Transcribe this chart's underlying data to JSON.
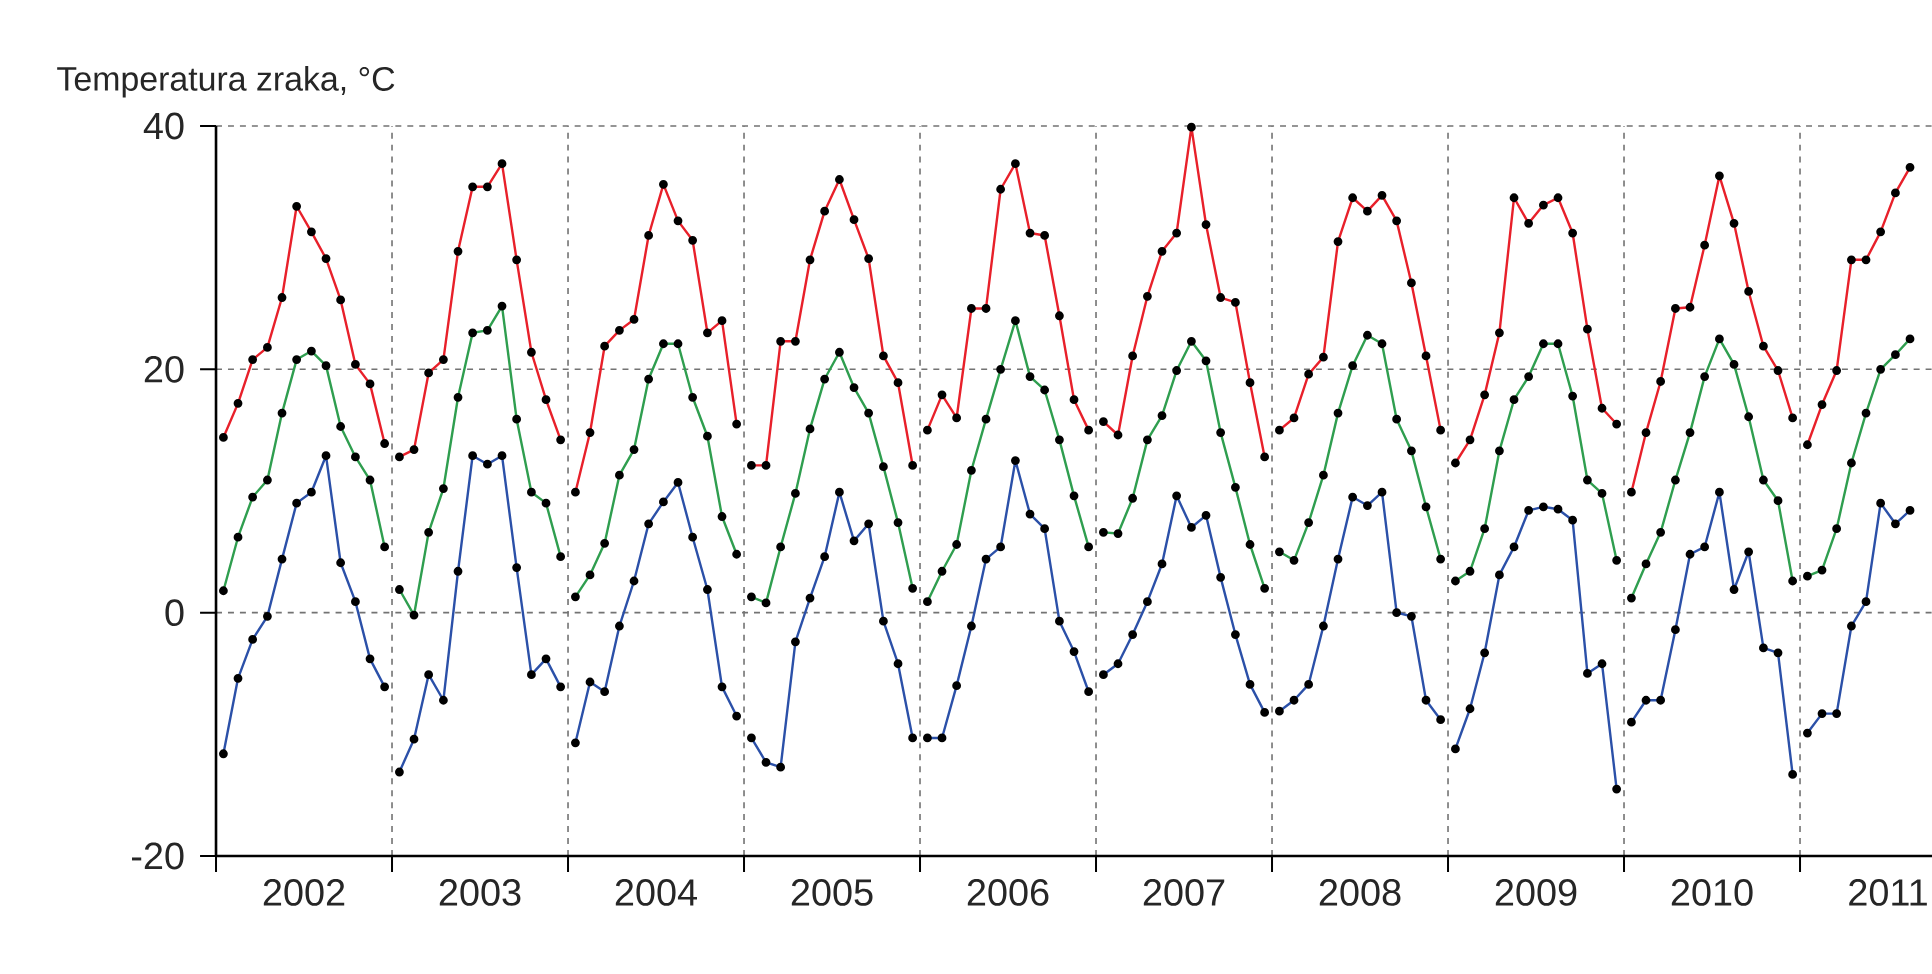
{
  "chart_data": {
    "type": "line",
    "ylabel": "Temperatura zraka, °C",
    "x": [
      2002.042,
      2002.125,
      2002.208,
      2002.292,
      2002.375,
      2002.458,
      2002.542,
      2002.625,
      2002.708,
      2002.792,
      2002.875,
      2002.958,
      2003,
      2003.042,
      2003.125,
      2003.208,
      2003.292,
      2003.375,
      2003.458,
      2003.542,
      2003.625,
      2003.708,
      2003.792,
      2003.875,
      2003.958,
      2004,
      2004.042,
      2004.125,
      2004.208,
      2004.292,
      2004.375,
      2004.458,
      2004.542,
      2004.625,
      2004.708,
      2004.792,
      2004.875,
      2004.958,
      2005,
      2005.042,
      2005.125,
      2005.208,
      2005.292,
      2005.375,
      2005.458,
      2005.542,
      2005.625,
      2005.708,
      2005.792,
      2005.875,
      2005.958,
      2006,
      2006.042,
      2006.125,
      2006.208,
      2006.292,
      2006.375,
      2006.458,
      2006.542,
      2006.625,
      2006.708,
      2006.792,
      2006.875,
      2006.958,
      2007,
      2007.042,
      2007.125,
      2007.208,
      2007.292,
      2007.375,
      2007.458,
      2007.542,
      2007.625,
      2007.708,
      2007.792,
      2007.875,
      2007.958,
      2008,
      2008.042,
      2008.125,
      2008.208,
      2008.292,
      2008.375,
      2008.458,
      2008.542,
      2008.625,
      2008.708,
      2008.792,
      2008.875,
      2008.958,
      2009,
      2009.042,
      2009.125,
      2009.208,
      2009.292,
      2009.375,
      2009.458,
      2009.542,
      2009.625,
      2009.708,
      2009.792,
      2009.875,
      2009.958,
      2010,
      2010.042,
      2010.125,
      2010.208,
      2010.292,
      2010.375,
      2010.458,
      2010.542,
      2010.625,
      2010.708,
      2010.792,
      2010.875,
      2010.958,
      2011,
      2011.042,
      2011.125,
      2011.208,
      2011.292,
      2011.375,
      2011.458,
      2011.542,
      2011.625
    ],
    "series": [
      {
        "color": "#e8202a",
        "values": [
          14.4,
          17.2,
          20.8,
          21.8,
          25.9,
          33.4,
          31.3,
          29.1,
          25.7,
          20.4,
          18.8,
          13.9,
          null,
          12.8,
          13.4,
          19.7,
          20.8,
          29.7,
          35.0,
          35.0,
          36.9,
          29.0,
          21.4,
          17.5,
          14.2,
          null,
          9.9,
          14.8,
          21.9,
          23.2,
          24.1,
          31.0,
          35.2,
          32.2,
          30.6,
          23.0,
          24.0,
          15.5,
          null,
          12.1,
          12.1,
          22.3,
          22.3,
          29.0,
          33.0,
          35.6,
          32.3,
          29.1,
          21.1,
          18.9,
          12.1,
          null,
          15.0,
          17.9,
          16.0,
          25.0,
          25.0,
          34.8,
          36.9,
          31.2,
          31.0,
          24.4,
          17.5,
          15.0,
          null,
          15.7,
          14.6,
          21.1,
          26.0,
          29.7,
          31.2,
          39.9,
          31.9,
          25.9,
          25.5,
          18.9,
          12.8,
          null,
          15.0,
          16.0,
          19.6,
          21.0,
          30.5,
          34.1,
          33.0,
          34.3,
          32.2,
          27.1,
          21.1,
          15.0,
          null,
          12.3,
          14.2,
          17.9,
          23.0,
          34.1,
          32.0,
          33.5,
          34.1,
          31.2,
          23.3,
          16.8,
          15.5,
          null,
          9.9,
          14.8,
          19.0,
          25.0,
          25.1,
          30.2,
          35.9,
          32.0,
          26.4,
          21.9,
          19.9,
          16.0,
          null,
          13.8,
          17.1,
          19.9,
          29.0,
          29.0,
          31.3,
          34.5,
          36.6
        ]
      },
      {
        "color": "#2f9e4f",
        "values": [
          1.8,
          6.2,
          9.5,
          10.9,
          16.4,
          20.8,
          21.5,
          20.3,
          15.3,
          12.8,
          10.9,
          5.4,
          null,
          1.9,
          -0.2,
          6.6,
          10.2,
          17.7,
          23.0,
          23.2,
          25.2,
          15.9,
          9.9,
          9.0,
          4.6,
          null,
          1.3,
          3.1,
          5.7,
          11.3,
          13.4,
          19.2,
          22.1,
          22.1,
          17.7,
          14.5,
          7.9,
          4.8,
          null,
          1.3,
          0.8,
          5.4,
          9.8,
          15.1,
          19.2,
          21.4,
          18.5,
          16.4,
          12.0,
          7.4,
          2.0,
          null,
          0.9,
          3.4,
          5.6,
          11.7,
          15.9,
          20.0,
          24.0,
          19.4,
          18.3,
          14.2,
          9.6,
          5.4,
          null,
          6.6,
          6.5,
          9.4,
          14.2,
          16.2,
          19.9,
          22.3,
          20.7,
          14.8,
          10.3,
          5.6,
          2.0,
          null,
          5.0,
          4.3,
          7.4,
          11.3,
          16.4,
          20.3,
          22.8,
          22.1,
          15.9,
          13.3,
          8.7,
          4.4,
          null,
          2.6,
          3.4,
          6.9,
          13.3,
          17.5,
          19.4,
          22.1,
          22.1,
          17.8,
          10.9,
          9.8,
          4.3,
          null,
          1.2,
          4.0,
          6.6,
          10.9,
          14.8,
          19.4,
          22.5,
          20.4,
          16.1,
          10.9,
          9.2,
          2.6,
          null,
          3.0,
          3.5,
          6.9,
          12.3,
          16.4,
          20.0,
          21.2,
          22.5
        ]
      },
      {
        "color": "#2b50a8",
        "values": [
          -11.6,
          -5.4,
          -2.2,
          -0.3,
          4.4,
          9.0,
          9.9,
          12.9,
          4.1,
          0.9,
          -3.8,
          -6.1,
          null,
          -13.1,
          -10.4,
          -5.1,
          -7.2,
          3.4,
          12.9,
          12.2,
          12.9,
          3.7,
          -5.1,
          -3.8,
          -6.1,
          null,
          -10.7,
          -5.7,
          -6.5,
          -1.1,
          2.6,
          7.3,
          9.1,
          10.7,
          6.2,
          1.9,
          -6.1,
          -8.5,
          null,
          -10.3,
          -12.3,
          -12.7,
          -2.4,
          1.2,
          4.6,
          9.9,
          5.9,
          7.3,
          -0.7,
          -4.2,
          -10.3,
          null,
          -10.3,
          -10.3,
          -6.0,
          -1.1,
          4.4,
          5.4,
          12.5,
          8.1,
          6.9,
          -0.7,
          -3.2,
          -6.5,
          null,
          -5.1,
          -4.2,
          -1.8,
          0.9,
          4.0,
          9.6,
          7.0,
          8.0,
          2.9,
          -1.8,
          -5.9,
          -8.2,
          null,
          -8.1,
          -7.2,
          -5.9,
          -1.1,
          4.4,
          9.5,
          8.8,
          9.9,
          0.0,
          -0.3,
          -7.2,
          -8.8,
          null,
          -11.2,
          -7.9,
          -3.3,
          3.1,
          5.4,
          8.4,
          8.7,
          8.5,
          7.6,
          -5.0,
          -4.2,
          -14.5,
          null,
          -9.0,
          -7.2,
          -7.2,
          -1.4,
          4.8,
          5.4,
          9.9,
          1.9,
          5.0,
          -2.9,
          -3.3,
          -13.3,
          null,
          -9.9,
          -8.3,
          -8.3,
          -1.1,
          0.9,
          9.0,
          7.3,
          8.4
        ]
      }
    ],
    "xlim": [
      2002,
      2011.75
    ],
    "xticks": [
      {
        "value": 2002,
        "label": null
      },
      {
        "value": 2002.5,
        "label": "2002"
      },
      {
        "value": 2003,
        "label": null
      },
      {
        "value": 2003.5,
        "label": "2003"
      },
      {
        "value": 2004,
        "label": null
      },
      {
        "value": 2004.5,
        "label": "2004"
      },
      {
        "value": 2005,
        "label": null
      },
      {
        "value": 2005.5,
        "label": "2005"
      },
      {
        "value": 2006,
        "label": null
      },
      {
        "value": 2006.5,
        "label": "2006"
      },
      {
        "value": 2007,
        "label": null
      },
      {
        "value": 2007.5,
        "label": "2007"
      },
      {
        "value": 2008,
        "label": null
      },
      {
        "value": 2008.5,
        "label": "2008"
      },
      {
        "value": 2009,
        "label": null
      },
      {
        "value": 2009.5,
        "label": "2009"
      },
      {
        "value": 2010,
        "label": null
      },
      {
        "value": 2010.5,
        "label": "2010"
      },
      {
        "value": 2011,
        "label": null
      },
      {
        "value": 2011.5,
        "label": "2011"
      }
    ],
    "ylim": [
      -20,
      40
    ],
    "yticks": [
      -20,
      0,
      20,
      40
    ],
    "grid": true,
    "marker": "circle",
    "line_style": "solid"
  }
}
